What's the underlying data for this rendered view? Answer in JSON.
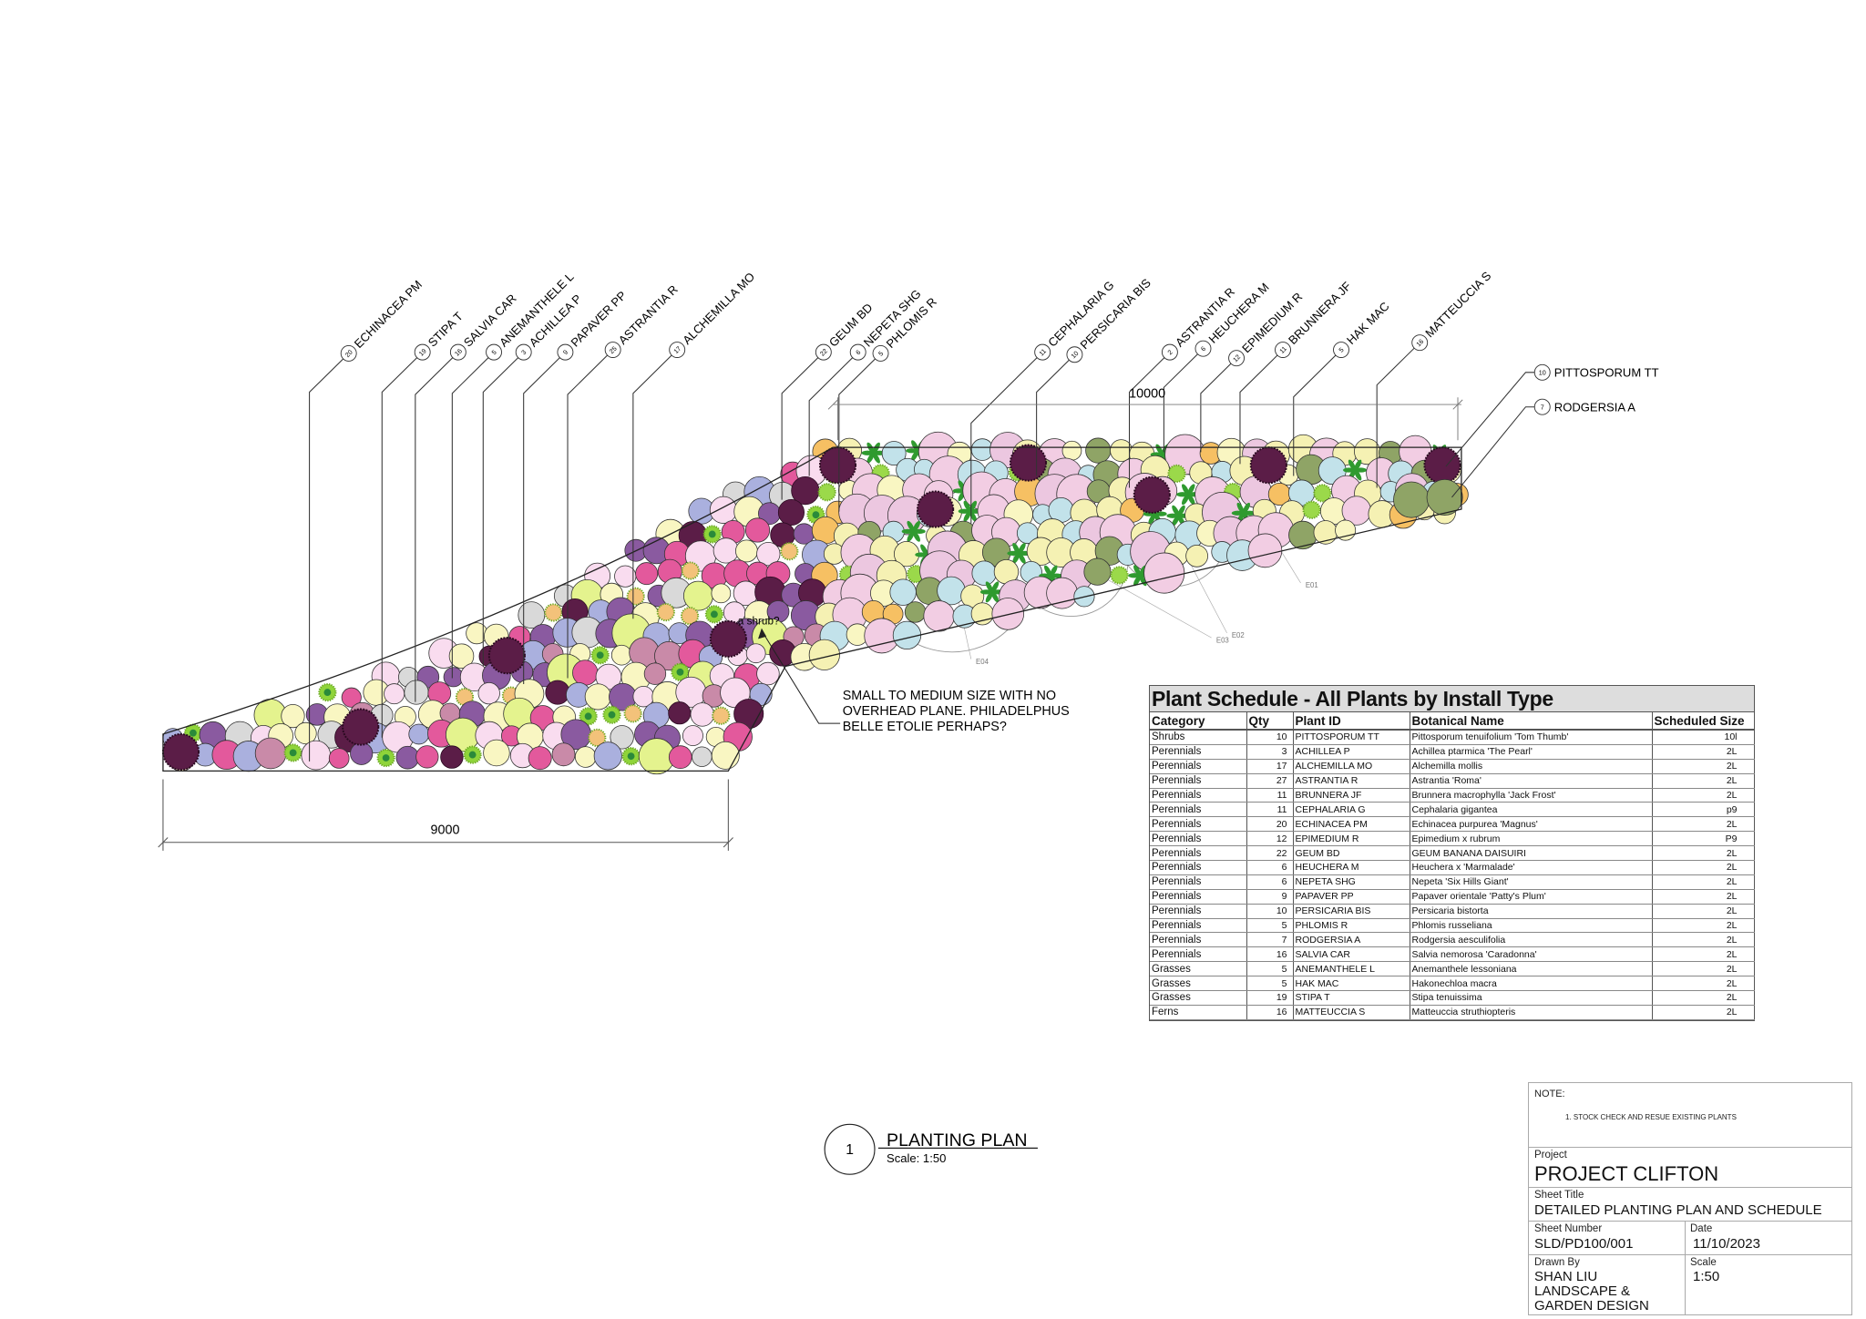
{
  "plan": {
    "dimension_bottom": "9000",
    "dimension_top": "10000",
    "callouts_top": [
      {
        "qty": "20",
        "id": "ECHINACEA PM"
      },
      {
        "qty": "19",
        "id": "STIPA T"
      },
      {
        "qty": "16",
        "id": "SALVIA CAR"
      },
      {
        "qty": "5",
        "id": "ANEMANTHELE L"
      },
      {
        "qty": "3",
        "id": "ACHILLEA P"
      },
      {
        "qty": "9",
        "id": "PAPAVER PP"
      },
      {
        "qty": "25",
        "id": "ASTRANTIA R"
      },
      {
        "qty": "17",
        "id": "ALCHEMILLA MO"
      },
      {
        "qty": "22",
        "id": "GEUM BD"
      },
      {
        "qty": "6",
        "id": "NEPETA SHG"
      },
      {
        "qty": "5",
        "id": "PHLOMIS R"
      },
      {
        "qty": "11",
        "id": "CEPHALARIA G"
      },
      {
        "qty": "10",
        "id": "PERSICARIA BIS"
      },
      {
        "qty": "2",
        "id": "ASTRANTIA R"
      },
      {
        "qty": "6",
        "id": "HEUCHERA M"
      },
      {
        "qty": "12",
        "id": "EPIMEDIUM R"
      },
      {
        "qty": "11",
        "id": "BRUNNERA JF"
      },
      {
        "qty": "5",
        "id": "HAK MAC"
      },
      {
        "qty": "16",
        "id": "MATTEUCCIA S"
      }
    ],
    "callouts_right": [
      {
        "qty": "10",
        "id": "PITTOSPORUM TT"
      },
      {
        "qty": "7",
        "id": "RODGERSIA A"
      }
    ],
    "existing_tags": [
      "E01",
      "E02",
      "E03",
      "E04"
    ],
    "shrub_note": "a shrub?",
    "shrub_comment": [
      "SMALL TO MEDIUM SIZE WITH NO",
      "OVERHEAD PLANE. PHILADELPHUS",
      "BELLE ETOLIE PERHAPS?"
    ],
    "drawing_number": "1",
    "drawing_title": "PLANTING PLAN",
    "drawing_scale": "Scale: 1:50",
    "plant_colors": {
      "echinacea": "#5b1d47",
      "stipa": "#8fd43a",
      "salvia": "#8a5aa0",
      "anemanthele": "#f3c27a",
      "achillea": "#f9dcef",
      "papaver": "#e3599c",
      "astrantia": "#c98aa8",
      "alchemilla": "#e4f38e",
      "geum": "#f9f6c2",
      "nepeta": "#aab0de",
      "phlomis": "#d9d9d9",
      "cephalaria": "#f5f1b3",
      "persicaria": "#f2cde3",
      "heuchera": "#f6c063",
      "epimedium": "#c2e2ea",
      "brunnera": "#ecc7e0",
      "hakmac": "#9bd94a",
      "matteuccia": "#2f9a2f",
      "pittosporum": "#5b1d47",
      "rodgersia": "#8fa466"
    }
  },
  "schedule": {
    "title": "Plant Schedule - All Plants by Install Type",
    "headers": [
      "Category",
      "Qty",
      "Plant ID",
      "Botanical Name",
      "Scheduled Size"
    ],
    "rows": [
      [
        "Shrubs",
        "10",
        "PITTOSPORUM TT",
        "Pittosporum tenuifolium 'Tom Thumb'",
        "10l"
      ],
      [
        "Perennials",
        "3",
        "ACHILLEA P",
        "Achillea ptarmica 'The Pearl'",
        "2L"
      ],
      [
        "Perennials",
        "17",
        "ALCHEMILLA MO",
        "Alchemilla mollis",
        "2L"
      ],
      [
        "Perennials",
        "27",
        "ASTRANTIA R",
        "Astrantia 'Roma'",
        "2L"
      ],
      [
        "Perennials",
        "11",
        "BRUNNERA JF",
        "Brunnera macrophylla 'Jack Frost'",
        "2L"
      ],
      [
        "Perennials",
        "11",
        "CEPHALARIA G",
        "Cephalaria gigantea",
        "p9"
      ],
      [
        "Perennials",
        "20",
        "ECHINACEA PM",
        "Echinacea purpurea 'Magnus'",
        "2L"
      ],
      [
        "Perennials",
        "12",
        "EPIMEDIUM R",
        "Epimedium x rubrum",
        "P9"
      ],
      [
        "Perennials",
        "22",
        "GEUM BD",
        "GEUM BANANA DAISUIRI",
        "2L"
      ],
      [
        "Perennials",
        "6",
        "HEUCHERA M",
        "Heuchera x 'Marmalade'",
        "2L"
      ],
      [
        "Perennials",
        "6",
        "NEPETA SHG",
        "Nepeta 'Six Hills Giant'",
        "2L"
      ],
      [
        "Perennials",
        "9",
        "PAPAVER PP",
        "Papaver orientale 'Patty's Plum'",
        "2L"
      ],
      [
        "Perennials",
        "10",
        "PERSICARIA BIS",
        "Persicaria bistorta",
        "2L"
      ],
      [
        "Perennials",
        "5",
        "PHLOMIS R",
        "Phlomis russeliana",
        "2L"
      ],
      [
        "Perennials",
        "7",
        "RODGERSIA A",
        "Rodgersia aesculifolia",
        "2L"
      ],
      [
        "Perennials",
        "16",
        "SALVIA CAR",
        "Salvia nemorosa 'Caradonna'",
        "2L"
      ],
      [
        "Grasses",
        "5",
        "ANEMANTHELE L",
        "Anemanthele lessoniana",
        "2L"
      ],
      [
        "Grasses",
        "5",
        "HAK MAC",
        "Hakonechloa macra",
        "2L"
      ],
      [
        "Grasses",
        "19",
        "STIPA T",
        "Stipa tenuissima",
        "2L"
      ],
      [
        "Ferns",
        "16",
        "MATTEUCCIA S",
        "Matteuccia struthiopteris",
        "2L"
      ]
    ]
  },
  "title_block": {
    "note_label": "NOTE:",
    "note_1": "1. STOCK CHECK AND RESUE EXISTING PLANTS",
    "project_label": "Project",
    "project": "PROJECT CLIFTON",
    "sheet_title_label": "Sheet Title",
    "sheet_title": "DETAILED PLANTING PLAN AND SCHEDULE",
    "sheet_number_label": "Sheet Number",
    "sheet_number": "SLD/PD100/001",
    "date_label": "Date",
    "date": "11/10/2023",
    "drawn_by_label": "Drawn By",
    "drawn_by": "SHAN LIU LANDSCAPE & GARDEN DESIGN",
    "scale_label": "Scale",
    "scale": "1:50"
  }
}
